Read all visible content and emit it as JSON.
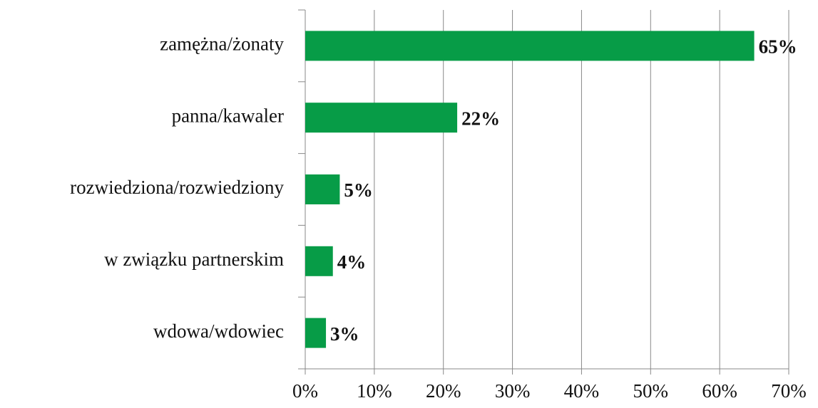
{
  "chart_data": {
    "type": "bar",
    "orientation": "horizontal",
    "categories": [
      "zamężna/żonaty",
      "panna/kawaler",
      "rozwiedziona/rozwiedziony",
      "w związku partnerskim",
      "wdowa/wdowiec"
    ],
    "values": [
      65,
      22,
      5,
      4,
      3
    ],
    "value_labels": [
      "65%",
      "22%",
      "5%",
      "4%",
      "3%"
    ],
    "color": "#079c47",
    "xlim": [
      0,
      70
    ],
    "xticks": [
      {
        "value": 0,
        "label": "0%"
      },
      {
        "value": 10,
        "label": "10%"
      },
      {
        "value": 20,
        "label": "20%"
      },
      {
        "value": 30,
        "label": "30%"
      },
      {
        "value": 40,
        "label": "40%"
      },
      {
        "value": 50,
        "label": "50%"
      },
      {
        "value": 60,
        "label": "60%"
      },
      {
        "value": 70,
        "label": "70%"
      }
    ],
    "grid": true
  }
}
